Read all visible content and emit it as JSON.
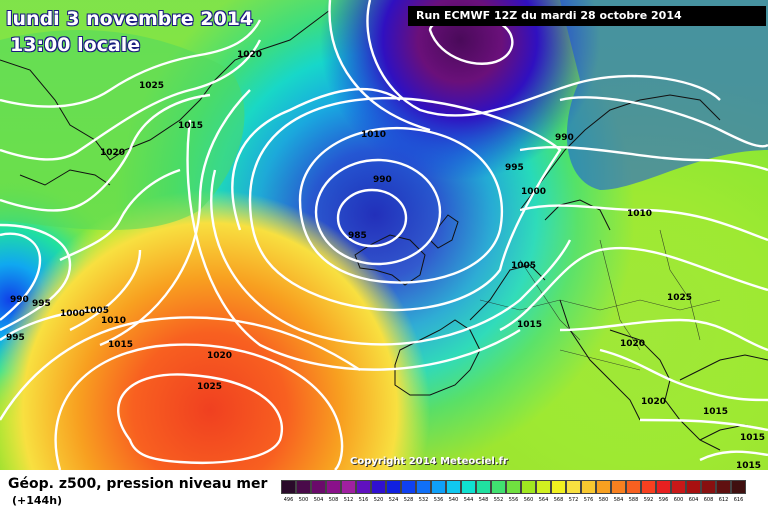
{
  "header": {
    "date_title": "lundi 3 novembre 2014",
    "time_title": "13:00 locale",
    "run_label": "Run ECMWF 12Z du mardi 28 octobre 2014"
  },
  "map": {
    "copyright": "Copyright 2014 Meteociel.fr",
    "isobar_labels": [
      {
        "id": "iso-1020-greenland-n",
        "text": "1020"
      },
      {
        "id": "iso-1025-greenland",
        "text": "1025"
      },
      {
        "id": "iso-1015-greenland",
        "text": "1015"
      },
      {
        "id": "iso-1020-greenland-s",
        "text": "1020"
      },
      {
        "id": "iso-1010-north",
        "text": "1010"
      },
      {
        "id": "iso-990-north",
        "text": "990"
      },
      {
        "id": "iso-985-low",
        "text": "985"
      },
      {
        "id": "iso-990-scandinavia",
        "text": "990"
      },
      {
        "id": "iso-995-norway",
        "text": "995"
      },
      {
        "id": "iso-1000-northsea",
        "text": "1000"
      },
      {
        "id": "iso-1010-baltic",
        "text": "1010"
      },
      {
        "id": "iso-1005-benelux",
        "text": "1005"
      },
      {
        "id": "iso-1015-france",
        "text": "1015"
      },
      {
        "id": "iso-1025-eastern-europe",
        "text": "1025"
      },
      {
        "id": "iso-1020-balkans",
        "text": "1020"
      },
      {
        "id": "iso-1020-greece",
        "text": "1020"
      },
      {
        "id": "iso-1015-turkey",
        "text": "1015"
      },
      {
        "id": "iso-1015-east-edge",
        "text": "1015"
      },
      {
        "id": "iso-1016-corner",
        "text": "1015"
      },
      {
        "id": "iso-990-west",
        "text": "990"
      },
      {
        "id": "iso-995-west-a",
        "text": "995"
      },
      {
        "id": "iso-995-west-b",
        "text": "995"
      },
      {
        "id": "iso-1000-west",
        "text": "1000"
      },
      {
        "id": "iso-1005-west",
        "text": "1005"
      },
      {
        "id": "iso-1010-west",
        "text": "1010"
      },
      {
        "id": "iso-1015-atlantic",
        "text": "1015"
      },
      {
        "id": "iso-1020-atlantic",
        "text": "1020"
      },
      {
        "id": "iso-1025-azores",
        "text": "1025"
      }
    ]
  },
  "legend": {
    "title": "Géop. z500, pression niveau mer",
    "subtitle": "(+144h)",
    "scale_values": [
      "496",
      "500",
      "504",
      "508",
      "512",
      "516",
      "520",
      "524",
      "528",
      "532",
      "536",
      "540",
      "544",
      "548",
      "552",
      "556",
      "560",
      "564",
      "568",
      "572",
      "576",
      "580",
      "584",
      "588",
      "592",
      "596",
      "600",
      "604",
      "608",
      "612",
      "616"
    ],
    "scale_colors": [
      "#2a0a2a",
      "#4a0a4a",
      "#6a0a6a",
      "#8a108a",
      "#a020a0",
      "#6010c0",
      "#3010d0",
      "#1020e0",
      "#1040f0",
      "#1070f8",
      "#10a0f8",
      "#10c8f0",
      "#10e0d0",
      "#20e0a0",
      "#40e070",
      "#70e040",
      "#a0e820",
      "#d0f020",
      "#f0f020",
      "#f8e040",
      "#f8c830",
      "#f8a020",
      "#f88020",
      "#f86020",
      "#f84020",
      "#e82020",
      "#c81818",
      "#a81010",
      "#881010",
      "#601010",
      "#401010"
    ],
    "field_colors": {
      "low_core": "#4a0a5a",
      "deep_blue": "#1a2ab8",
      "green": "#60d848",
      "yellow": "#f0f040",
      "orange": "#f89020",
      "red": "#f05020"
    }
  }
}
